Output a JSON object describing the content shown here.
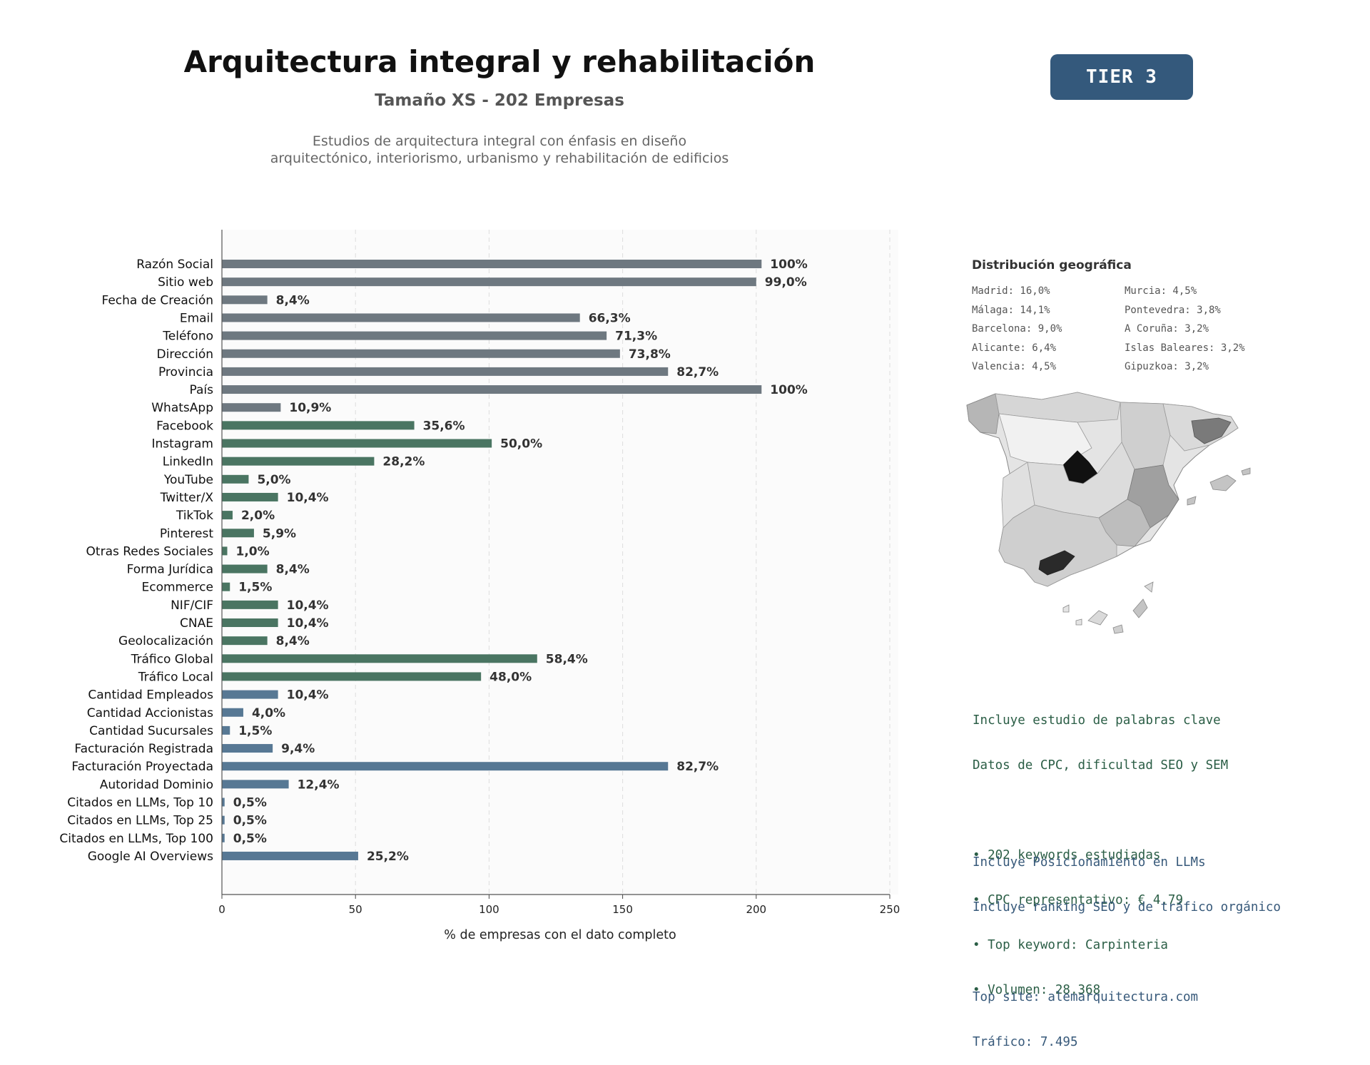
{
  "header": {
    "title": "Arquitectura integral y rehabilitación",
    "subtitle": "Tamaño XS - 202 Empresas",
    "description_line1": "Estudios de arquitectura integral con énfasis en diseño",
    "description_line2": "arquitectónico, interiorismo, urbanismo y rehabilitación de edificios",
    "tier": "TIER 3"
  },
  "colors": {
    "group_gray": "#6e7880",
    "group_green": "#4a7562",
    "group_blue": "#577894",
    "accent_badge": "#34597c",
    "text_green": "#2b5e46",
    "text_blue": "#37597a"
  },
  "chart_data": {
    "type": "bar",
    "orientation": "horizontal",
    "categories": [
      "Razón Social",
      "Sitio web",
      "Fecha de Creación",
      "Email",
      "Teléfono",
      "Dirección",
      "Provincia",
      "País",
      "WhatsApp",
      "Facebook",
      "Instagram",
      "LinkedIn",
      "YouTube",
      "Twitter/X",
      "TikTok",
      "Pinterest",
      "Otras Redes Sociales",
      "Forma Jurídica",
      "Ecommerce",
      "NIF/CIF",
      "CNAE",
      "Geolocalización",
      "Tráfico Global",
      "Tráfico Local",
      "Cantidad Empleados",
      "Cantidad Accionistas",
      "Cantidad Sucursales",
      "Facturación Registrada",
      "Facturación Proyectada",
      "Autoridad Dominio",
      "Citados en LLMs, Top 10",
      "Citados en LLMs, Top 25",
      "Citados en LLMs, Top 100",
      "Google AI Overviews"
    ],
    "values": [
      202,
      200,
      17,
      134,
      144,
      149,
      167,
      202,
      22,
      72,
      101,
      57,
      10,
      21,
      4,
      12,
      2,
      17,
      3,
      21,
      21,
      17,
      118,
      97,
      21,
      8,
      3,
      19,
      167,
      25,
      1,
      1,
      1,
      51
    ],
    "data_labels": [
      "100%",
      "99,0%",
      "8,4%",
      "66,3%",
      "71,3%",
      "73,8%",
      "82,7%",
      "100%",
      "10,9%",
      "35,6%",
      "50,0%",
      "28,2%",
      "5,0%",
      "10,4%",
      "2,0%",
      "5,9%",
      "1,0%",
      "8,4%",
      "1,5%",
      "10,4%",
      "10,4%",
      "8,4%",
      "58,4%",
      "48,0%",
      "10,4%",
      "4,0%",
      "1,5%",
      "9,4%",
      "82,7%",
      "12,4%",
      "0,5%",
      "0,5%",
      "0,5%",
      "25,2%"
    ],
    "groups": [
      "gray",
      "gray",
      "gray",
      "gray",
      "gray",
      "gray",
      "gray",
      "gray",
      "gray",
      "green",
      "green",
      "green",
      "green",
      "green",
      "green",
      "green",
      "green",
      "green",
      "green",
      "green",
      "green",
      "green",
      "green",
      "green",
      "blue",
      "blue",
      "blue",
      "blue",
      "blue",
      "blue",
      "blue",
      "blue",
      "blue",
      "blue"
    ],
    "xlabel": "% de empresas con el dato completo",
    "xlim": [
      0,
      250
    ],
    "xticks": [
      0,
      50,
      100,
      150,
      200,
      250
    ],
    "grid": "vertical dashed"
  },
  "geo": {
    "title": "Distribución geográfica",
    "items": [
      "Madrid: 16,0%",
      "Murcia: 4,5%",
      "Málaga: 14,1%",
      "Pontevedra: 3,8%",
      "Barcelona: 9,0%",
      "A Coruña: 3,2%",
      "Alicante: 6,4%",
      "Islas Baleares: 3,2%",
      "Valencia: 4,5%",
      "Gipuzkoa: 3,2%"
    ]
  },
  "info": {
    "keywords_line1": "Incluye estudio de palabras clave",
    "keywords_line2": "Datos de CPC, dificultad SEO y SEM",
    "bullet1": "• 202 keywords estudiadas",
    "bullet2": "• CPC representativo: € 4.79",
    "bullet3": "• Top keyword: Carpinteria",
    "bullet4": "• Volumen: 28.368",
    "llm_line1": "Incluye Posicionamiento en LLMs",
    "llm_line2": "Incluye ranking SEO y de tráfico orgánico",
    "top_site": "Top site: alemarquitectura.com",
    "traffic": "Tráfico: 7.495"
  }
}
